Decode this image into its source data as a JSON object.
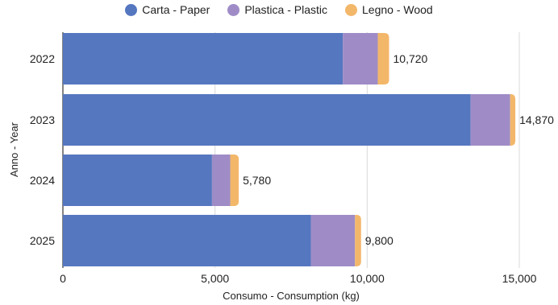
{
  "chart_data": {
    "type": "bar",
    "orientation": "horizontal",
    "stacked": true,
    "categories": [
      "2022",
      "2023",
      "2024",
      "2025"
    ],
    "series": [
      {
        "name": "Carta - Paper",
        "color": "#5577c0",
        "values": [
          9200,
          13400,
          4900,
          8150
        ]
      },
      {
        "name": "Plastica - Plastic",
        "color": "#9f8cc6",
        "values": [
          1150,
          1300,
          600,
          1450
        ]
      },
      {
        "name": "Legno - Wood",
        "color": "#f3b76a",
        "values": [
          370,
          170,
          280,
          200
        ]
      }
    ],
    "totals": [
      "10,720",
      "14,870",
      "5,780",
      "9,800"
    ],
    "xlabel": "Consumo - Consumption (kg)",
    "ylabel": "Anno - Year",
    "xlim": [
      0,
      15000
    ],
    "xticks": [
      0,
      5000,
      10000,
      15000
    ],
    "xtick_labels": [
      "0",
      "5,000",
      "10,000",
      "15,000"
    ],
    "grid": true,
    "legend_position": "top-center"
  }
}
